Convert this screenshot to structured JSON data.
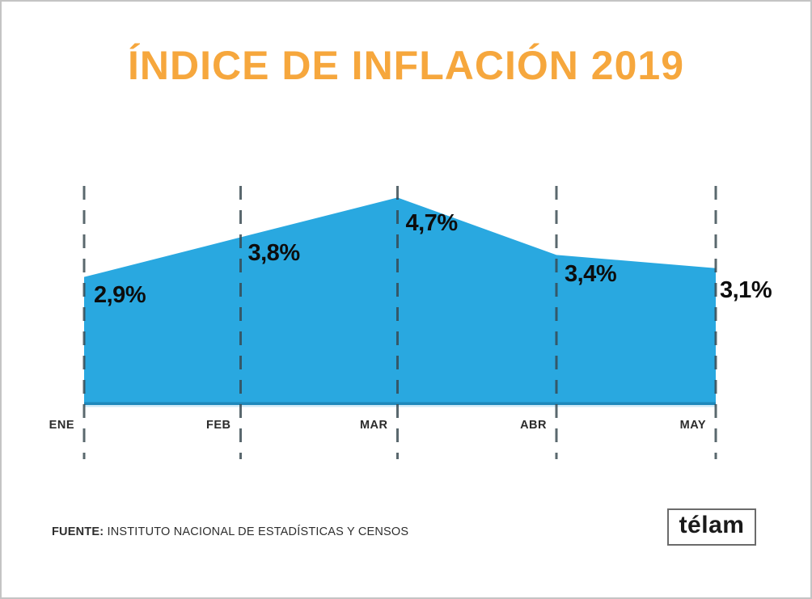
{
  "title": "ÍNDICE DE INFLACIÓN 2019",
  "chart_data": {
    "type": "area",
    "categories": [
      "ENE",
      "FEB",
      "MAR",
      "ABR",
      "MAY"
    ],
    "values": [
      2.9,
      3.8,
      4.7,
      3.4,
      3.1
    ],
    "value_labels": [
      "2,9%",
      "3,8%",
      "4,7%",
      "3,4%",
      "3,1%"
    ],
    "title": "ÍNDICE DE INFLACIÓN 2019",
    "xlabel": "",
    "ylabel": "",
    "ylim": [
      0,
      5
    ],
    "grid": "dashed-vertical-lines",
    "legend": "none",
    "value_suffix": "%",
    "decimal_separator": ","
  },
  "source": {
    "label": "FUENTE:",
    "text": "INSTITUTO NACIONAL DE ESTADÍSTICAS Y CENSOS"
  },
  "logo": {
    "text": "télam"
  },
  "colors": {
    "area_fill": "#29A8E0",
    "area_bottom_edge": "#1E88BB",
    "area_bottom_glow": "#CFE9F7",
    "title_text": "#F6A73D",
    "value_label_text": "#0D0D0D",
    "month_label_text": "#2B2B2B",
    "dashed_line": "#37474F",
    "source_text": "#2E2E2E",
    "background": "#FFFFFF",
    "card_border": "#C4C4C4",
    "logo_border": "#6B6B6B",
    "logo_text": "#1A1A1A"
  }
}
